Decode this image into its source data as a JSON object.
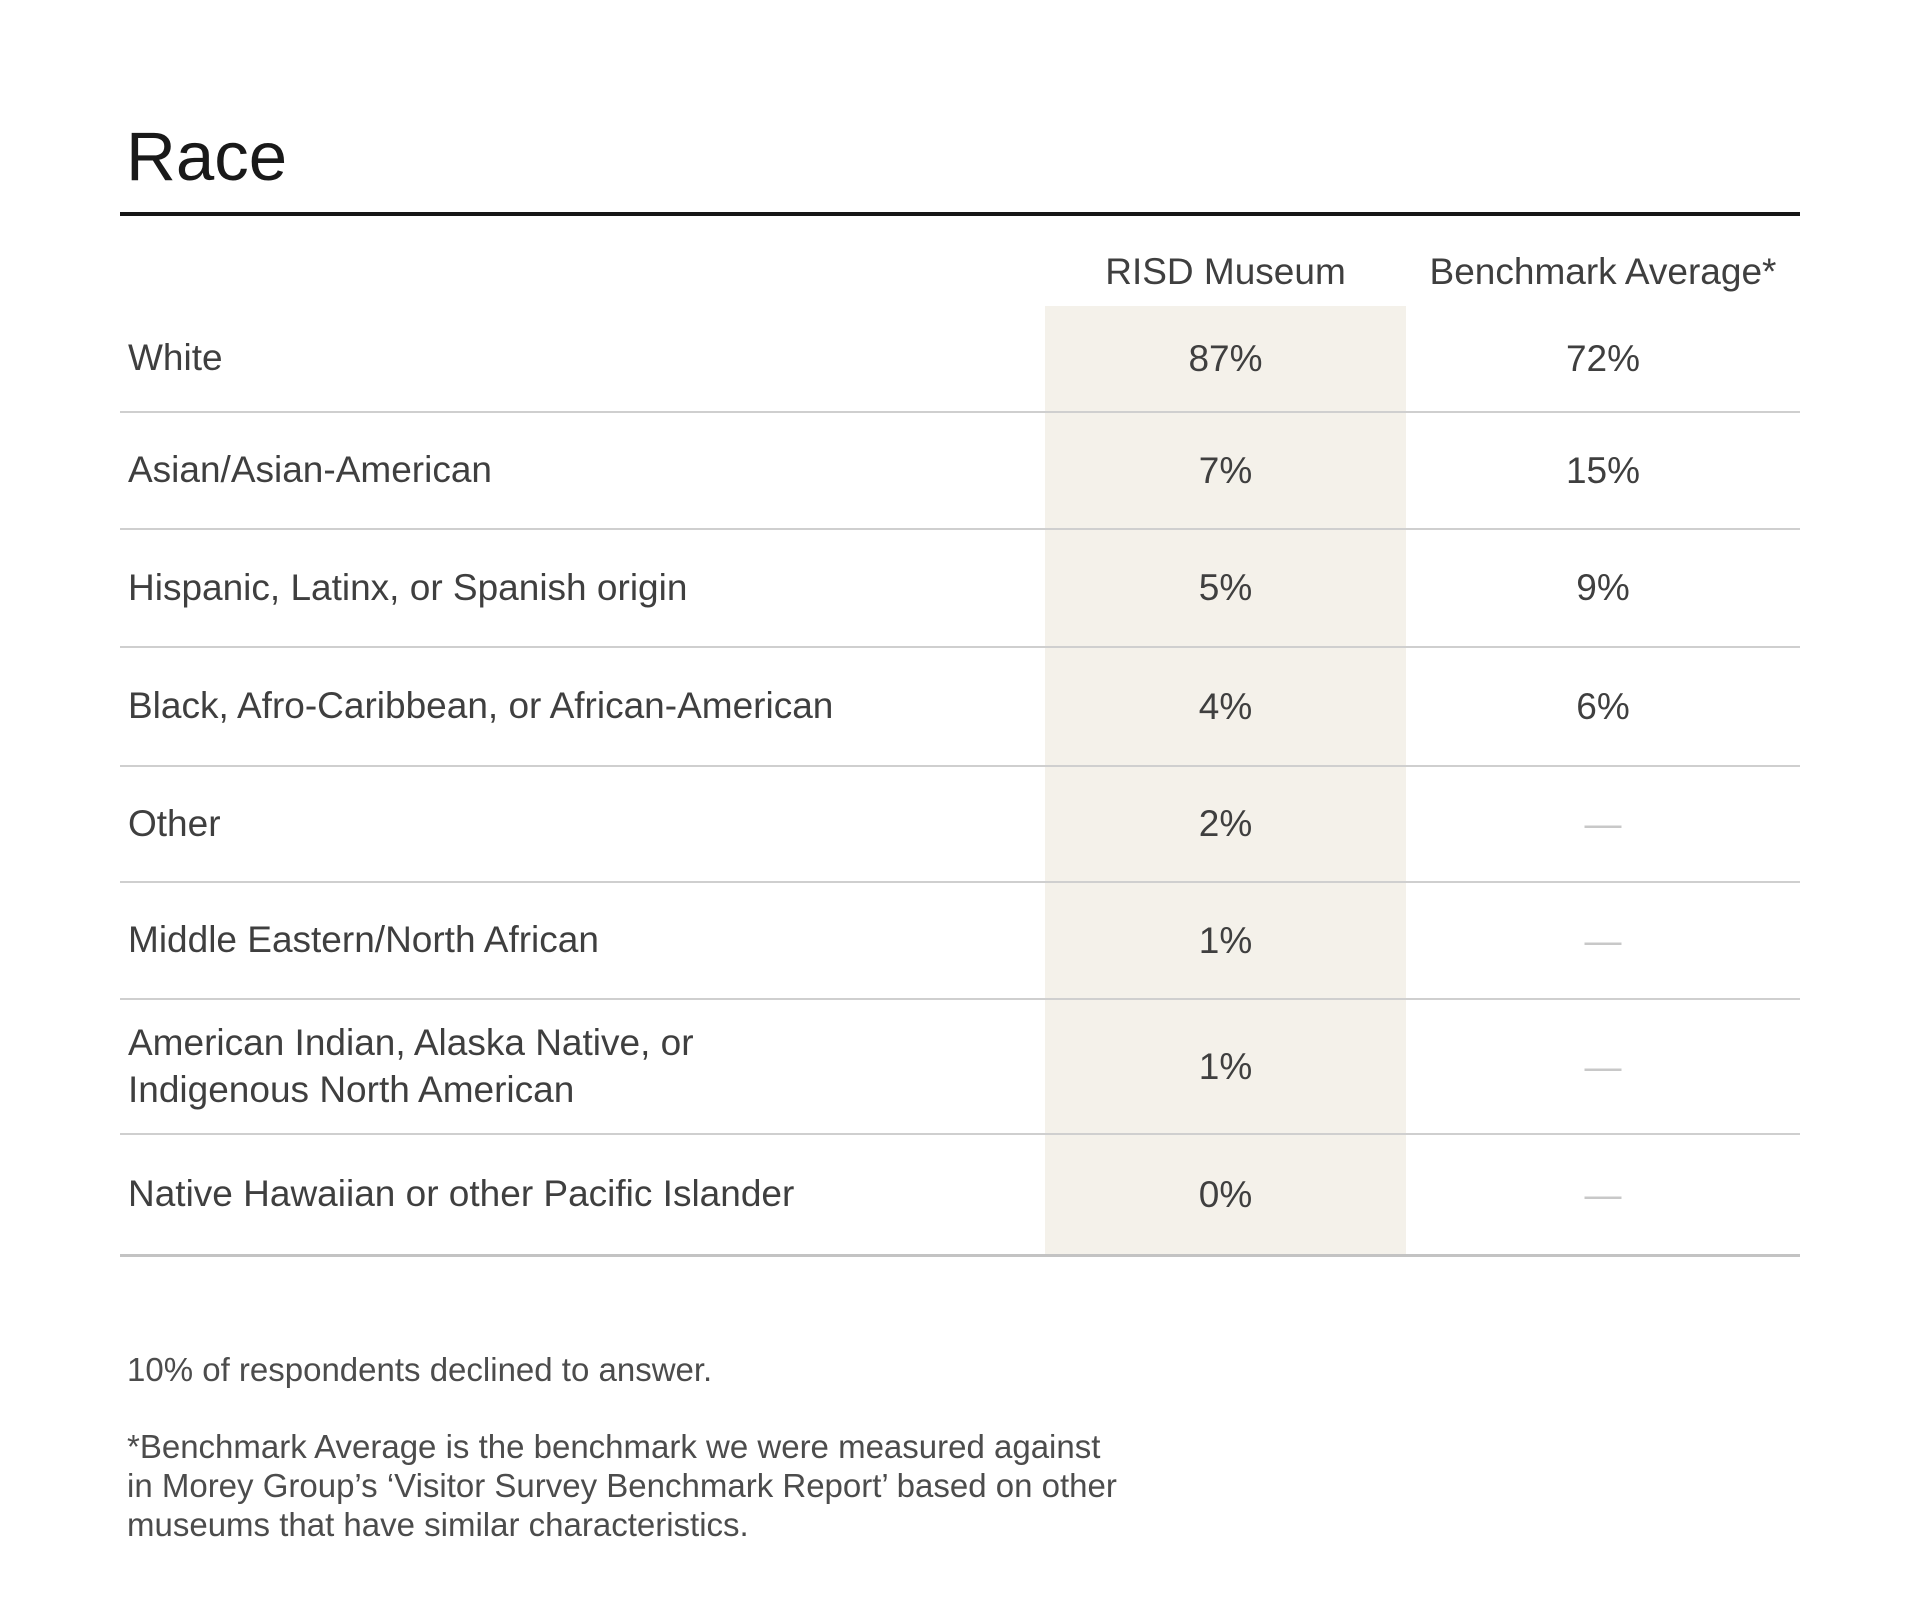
{
  "header": {
    "title": "Race"
  },
  "table": {
    "columns": [
      "RISD Museum",
      "Benchmark Average*"
    ],
    "rows": [
      {
        "label": "White",
        "risd": "87%",
        "benchmark": "72%"
      },
      {
        "label": "Asian/Asian-American",
        "risd": "7%",
        "benchmark": "15%"
      },
      {
        "label": "Hispanic, Latinx, or Spanish origin",
        "risd": "5%",
        "benchmark": "9%"
      },
      {
        "label": "Black, Afro-Caribbean, or African-American",
        "risd": "4%",
        "benchmark": "6%"
      },
      {
        "label": "Other",
        "risd": "2%",
        "benchmark": "—"
      },
      {
        "label": "Middle Eastern/North African",
        "risd": "1%",
        "benchmark": "—"
      },
      {
        "label": "American Indian, Alaska Native, or\nIndigenous North American",
        "risd": "1%",
        "benchmark": "—"
      },
      {
        "label": "Native Hawaiian or other Pacific Islander",
        "risd": "0%",
        "benchmark": "—"
      }
    ]
  },
  "notes": {
    "declined": "10% of respondents declined to answer.",
    "benchmark_definition": "*Benchmark Average is the benchmark we were measured against\nin Morey Group’s ‘Visitor Survey Benchmark Report’ based on other\nmuseums that have similar characteristics."
  },
  "colors": {
    "highlight_column_background": "#f4f1ea",
    "row_separator": "#cfcfcf",
    "title_rule": "#161616",
    "primary_text": "#3f3f3f",
    "secondary_text": "#4d4d4d",
    "missing_value_dash": "#c8c8c8"
  },
  "chart_data": {
    "type": "table",
    "title": "Race",
    "columns": [
      "",
      "RISD Museum",
      "Benchmark Average*"
    ],
    "categories": [
      "White",
      "Asian/Asian-American",
      "Hispanic, Latinx, or Spanish origin",
      "Black, Afro-Caribbean, or African-American",
      "Other",
      "Middle Eastern/North African",
      "American Indian, Alaska Native, or Indigenous North American",
      "Native Hawaiian or other Pacific Islander"
    ],
    "series": [
      {
        "name": "RISD Museum",
        "values": [
          87,
          7,
          5,
          4,
          2,
          1,
          1,
          0
        ],
        "unit": "%"
      },
      {
        "name": "Benchmark Average*",
        "values": [
          72,
          15,
          9,
          6,
          null,
          null,
          null,
          null
        ],
        "unit": "%"
      }
    ],
    "annotations": [
      "10% of respondents declined to answer.",
      "*Benchmark Average is the benchmark we were measured against in Morey Group’s ‘Visitor Survey Benchmark Report’ based on other museums that have similar characteristics."
    ]
  }
}
